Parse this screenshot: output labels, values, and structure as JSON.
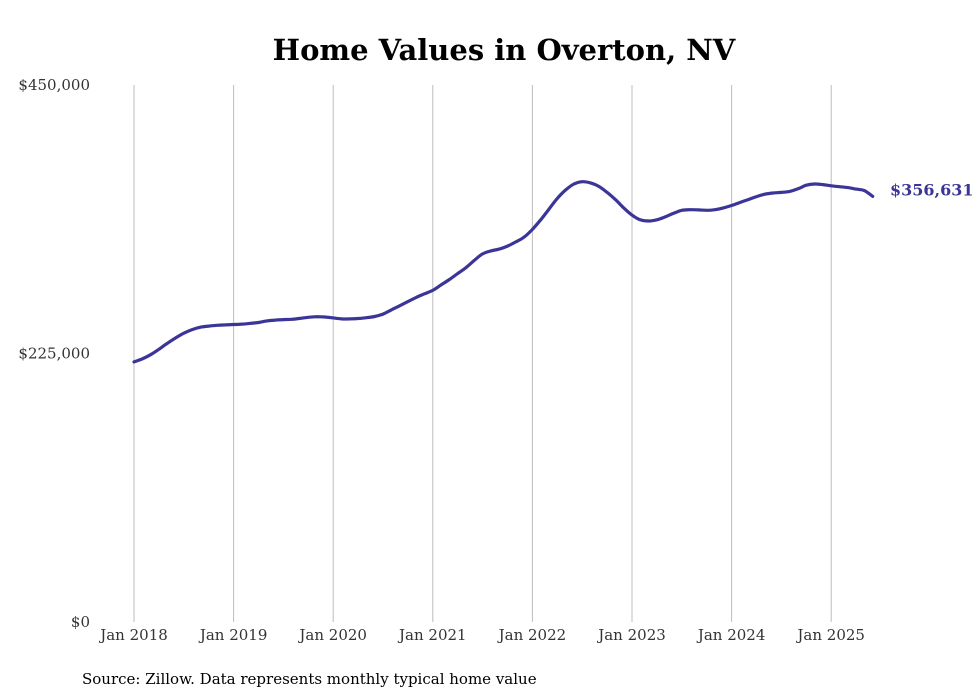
{
  "chart_data": {
    "type": "line",
    "title": "Home Values in Overton, NV",
    "source_note": "Source: Zillow. Data represents monthly typical home value",
    "xlabel": "",
    "ylabel": "",
    "x_ticks": [
      "Jan 2018",
      "Jan 2019",
      "Jan 2020",
      "Jan 2021",
      "Jan 2022",
      "Jan 2023",
      "Jan 2024",
      "Jan 2025"
    ],
    "y_ticks": [
      "$0",
      "$225,000",
      "$450,000"
    ],
    "ylim": [
      0,
      450000
    ],
    "xlim": [
      "2018-01",
      "2025-06"
    ],
    "grid": "vertical",
    "line_color": "#3b3597",
    "end_label": "$356,631",
    "series": [
      {
        "x": [
          "2018-01",
          "2018-02",
          "2018-03",
          "2018-04",
          "2018-05",
          "2018-06",
          "2018-07",
          "2018-08",
          "2018-09",
          "2018-10",
          "2018-11",
          "2018-12",
          "2019-01",
          "2019-02",
          "2019-03",
          "2019-04",
          "2019-05",
          "2019-06",
          "2019-07",
          "2019-08",
          "2019-09",
          "2019-10",
          "2019-11",
          "2019-12",
          "2020-01",
          "2020-02",
          "2020-03",
          "2020-04",
          "2020-05",
          "2020-06",
          "2020-07",
          "2020-08",
          "2020-09",
          "2020-10",
          "2020-11",
          "2020-12",
          "2021-01",
          "2021-02",
          "2021-03",
          "2021-04",
          "2021-05",
          "2021-06",
          "2021-07",
          "2021-08",
          "2021-09",
          "2021-10",
          "2021-11",
          "2021-12",
          "2022-01",
          "2022-02",
          "2022-03",
          "2022-04",
          "2022-05",
          "2022-06",
          "2022-07",
          "2022-08",
          "2022-09",
          "2022-10",
          "2022-11",
          "2022-12",
          "2023-01",
          "2023-02",
          "2023-03",
          "2023-04",
          "2023-05",
          "2023-06",
          "2023-07",
          "2023-08",
          "2023-09",
          "2023-10",
          "2023-11",
          "2023-12",
          "2024-01",
          "2024-02",
          "2024-03",
          "2024-04",
          "2024-05",
          "2024-06",
          "2024-07",
          "2024-08",
          "2024-09",
          "2024-10",
          "2024-11",
          "2024-12",
          "2025-01",
          "2025-02",
          "2025-03",
          "2025-04",
          "2025-05",
          "2025-06"
        ],
        "values": [
          218000,
          220500,
          224000,
          228500,
          233500,
          238000,
          242000,
          245000,
          247000,
          248000,
          248600,
          249000,
          249300,
          249600,
          250200,
          251000,
          252300,
          253000,
          253400,
          253700,
          254400,
          255300,
          255800,
          255600,
          254800,
          254000,
          254000,
          254300,
          255000,
          256000,
          258000,
          261500,
          265000,
          268500,
          272000,
          275000,
          278000,
          282500,
          287000,
          292000,
          297000,
          303000,
          308500,
          311000,
          312500,
          315000,
          318500,
          322500,
          329000,
          337000,
          346000,
          355000,
          362000,
          367000,
          369000,
          368000,
          365000,
          360000,
          354000,
          347000,
          341000,
          337000,
          336000,
          337000,
          339500,
          342500,
          345000,
          345500,
          345300,
          345000,
          345500,
          347000,
          349000,
          351500,
          354000,
          356500,
          358500,
          359500,
          360000,
          360800,
          363000,
          366000,
          367000,
          366500,
          365500,
          364800,
          364000,
          362800,
          361500,
          356631
        ]
      }
    ]
  }
}
